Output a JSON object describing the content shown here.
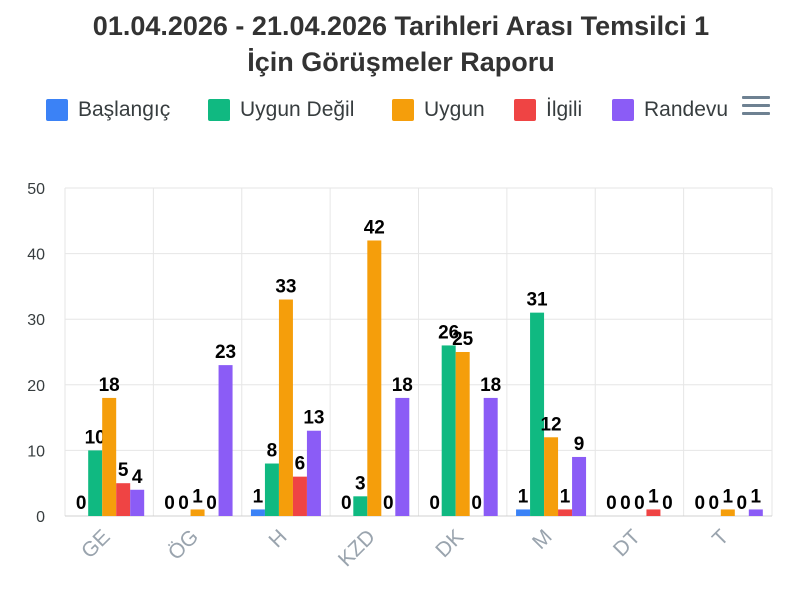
{
  "chart_data": {
    "type": "bar",
    "title": "01.04.2026 - 21.04.2026 Tarihleri Arası Temsilci 1 İçin Görüşmeler Raporu",
    "categories": [
      "GE",
      "ÖG",
      "H",
      "KZD",
      "DK",
      "M",
      "DT",
      "T"
    ],
    "series": [
      {
        "name": "Başlangıç",
        "color": "#3b82f6",
        "values": [
          0,
          0,
          1,
          0,
          0,
          1,
          0,
          0
        ]
      },
      {
        "name": "Uygun Değil",
        "color": "#10b981",
        "values": [
          10,
          0,
          8,
          3,
          26,
          31,
          0,
          0
        ]
      },
      {
        "name": "Uygun",
        "color": "#f59e0b",
        "values": [
          18,
          1,
          33,
          42,
          25,
          12,
          0,
          1
        ]
      },
      {
        "name": "İlgili",
        "color": "#ef4444",
        "values": [
          5,
          0,
          6,
          0,
          0,
          1,
          1,
          0
        ]
      },
      {
        "name": "Randevu",
        "color": "#8b5cf6",
        "values": [
          4,
          23,
          13,
          18,
          18,
          9,
          0,
          1
        ]
      }
    ],
    "ylim": [
      0,
      50
    ],
    "yticks": [
      0,
      10,
      20,
      30,
      40,
      50
    ],
    "xlabel": "",
    "ylabel": "",
    "grid": true,
    "legend": "top",
    "data_labels": true
  },
  "toolbar": {
    "menu_icon": "hamburger-menu-icon"
  }
}
